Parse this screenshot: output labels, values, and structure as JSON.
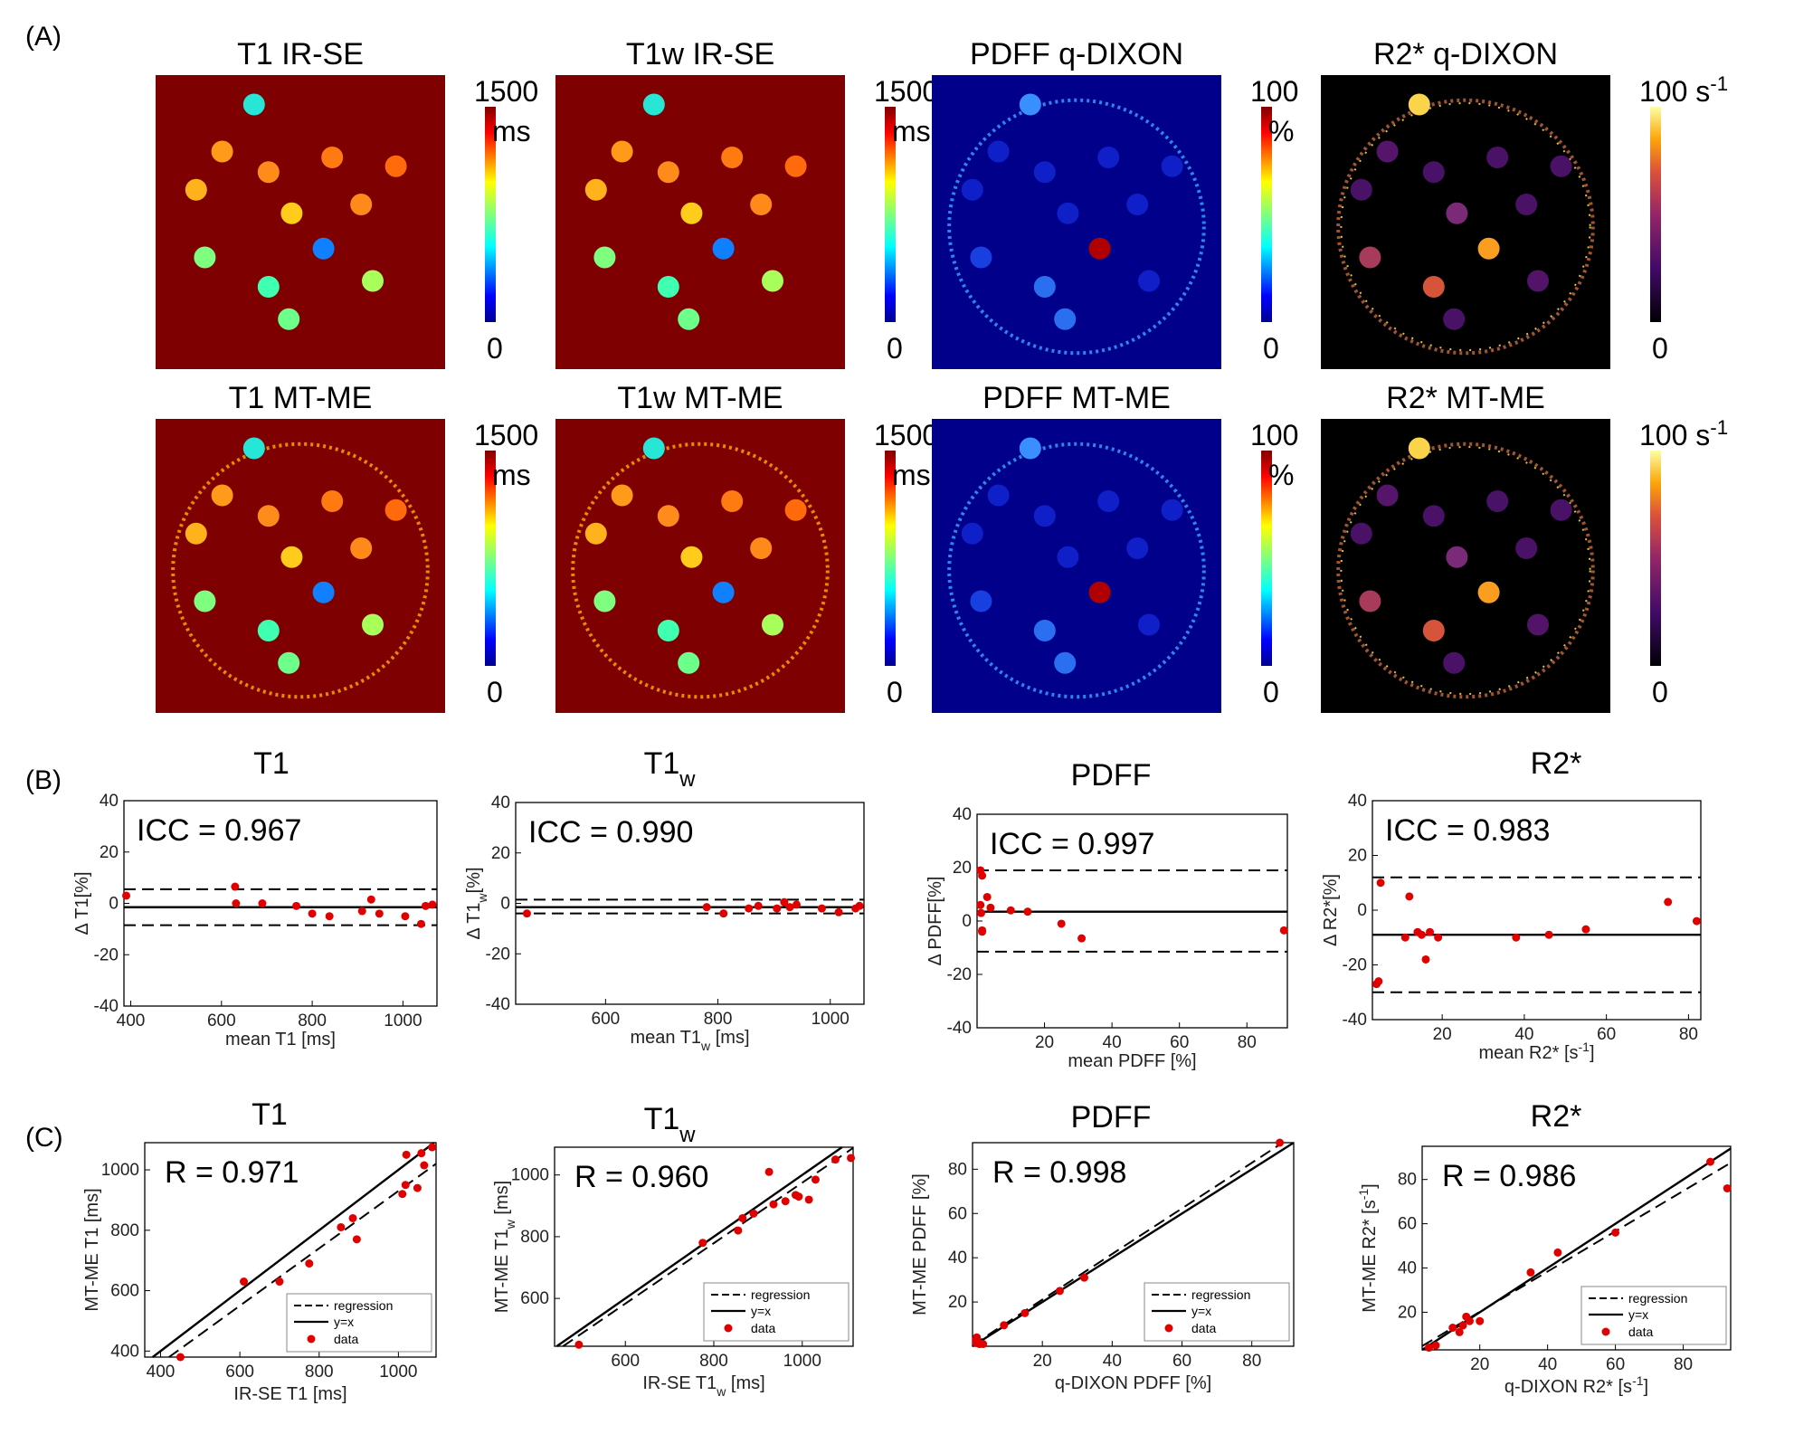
{
  "panel_labels": {
    "a": "(A)",
    "b": "(B)",
    "c": "(C)"
  },
  "maps": [
    {
      "title": "T1 IR-SE",
      "cb_max": "1500",
      "cb_unit": "ms",
      "cb_min": "0",
      "cmap": "jet",
      "bg": "#7f0000",
      "ring": false,
      "row": 0,
      "col": 0
    },
    {
      "title": "T1w IR-SE",
      "cb_max": "1500",
      "cb_unit": "ms",
      "cb_min": "0",
      "cmap": "jet",
      "bg": "#7f0000",
      "ring": false,
      "row": 0,
      "col": 1
    },
    {
      "title": "PDFF q-DIXON",
      "cb_max": "100",
      "cb_unit": "%",
      "cb_min": "0",
      "cmap": "jet",
      "bg": "#00008b",
      "ring": true,
      "row": 0,
      "col": 2
    },
    {
      "title": "R2* q-DIXON",
      "cb_max": "100 s",
      "cb_sup": "-1",
      "cb_unit": "",
      "cb_min": "0",
      "cmap": "inferno",
      "bg": "#000000",
      "ring": true,
      "row": 0,
      "col": 3
    },
    {
      "title": "T1 MT-ME",
      "cb_max": "1500",
      "cb_unit": "ms",
      "cb_min": "0",
      "cmap": "jet",
      "bg": "#7f0000",
      "ring": true,
      "row": 1,
      "col": 0
    },
    {
      "title": "T1w MT-ME",
      "cb_max": "1500",
      "cb_unit": "ms",
      "cb_min": "0",
      "cmap": "jet",
      "bg": "#7f0000",
      "ring": true,
      "row": 1,
      "col": 1
    },
    {
      "title": "PDFF MT-ME",
      "cb_max": "100",
      "cb_unit": "%",
      "cb_min": "0",
      "cmap": "jet",
      "bg": "#00008b",
      "ring": true,
      "row": 1,
      "col": 2
    },
    {
      "title": "R2* MT-ME",
      "cb_max": "100 s",
      "cb_sup": "-1",
      "cb_unit": "",
      "cb_min": "0",
      "cmap": "inferno",
      "bg": "#000000",
      "ring": true,
      "row": 1,
      "col": 3
    }
  ],
  "legend": {
    "regression": "regression",
    "identity": "y=x",
    "data": "data"
  },
  "chart_data": [
    {
      "type": "scatter",
      "panel": "B",
      "title": "T1",
      "title_sub": "",
      "annotation": "ICC = 0.967",
      "xlabel": "mean T1 [ms]",
      "xlabel_sub": "",
      "xlabel_sup": "",
      "xlabel_tail": "",
      "ylabel": "Δ T1[%]",
      "ylabel_sub": "",
      "ylabel_tail": "",
      "xlim": [
        385,
        1075
      ],
      "ylim": [
        -40,
        40
      ],
      "xticks": [
        400,
        600,
        800,
        1000
      ],
      "yticks": [
        -40,
        -20,
        0,
        20,
        40
      ],
      "mean_line": -1.5,
      "loa": [
        5.5,
        -8.5
      ],
      "points": [
        [
          390,
          3
        ],
        [
          630,
          6.5
        ],
        [
          632,
          0
        ],
        [
          690,
          0
        ],
        [
          765,
          -1
        ],
        [
          800,
          -4
        ],
        [
          838,
          -5
        ],
        [
          910,
          -3
        ],
        [
          930,
          1.5
        ],
        [
          948,
          -4
        ],
        [
          1005,
          -5
        ],
        [
          1040,
          -8
        ],
        [
          1050,
          -1
        ],
        [
          1065,
          -0.5
        ]
      ]
    },
    {
      "type": "scatter",
      "panel": "B",
      "title": "T1",
      "title_sub": "w",
      "annotation": "ICC = 0.990",
      "xlabel": "mean T1",
      "xlabel_sub": "w",
      "xlabel_sup": "",
      "xlabel_tail": " [ms]",
      "ylabel": "Δ T1",
      "ylabel_sub": "w",
      "ylabel_tail": "[%]",
      "xlim": [
        440,
        1060
      ],
      "ylim": [
        -40,
        40
      ],
      "xticks": [
        600,
        800,
        1000
      ],
      "yticks": [
        -40,
        -20,
        0,
        20,
        40
      ],
      "mean_line": -1.5,
      "loa": [
        1.5,
        -4
      ],
      "points": [
        [
          460,
          -4
        ],
        [
          780,
          -1.5
        ],
        [
          810,
          -4
        ],
        [
          855,
          -2
        ],
        [
          872,
          -1
        ],
        [
          905,
          -2
        ],
        [
          918,
          0.5
        ],
        [
          928,
          -1.5
        ],
        [
          940,
          -0.5
        ],
        [
          985,
          -2
        ],
        [
          1015,
          -3.5
        ],
        [
          1045,
          -2
        ],
        [
          1052,
          -1
        ]
      ]
    },
    {
      "type": "scatter",
      "panel": "B",
      "title": "PDFF",
      "title_sub": "",
      "annotation": "ICC = 0.997",
      "xlabel": "mean PDFF [%]",
      "xlabel_sub": "",
      "xlabel_sup": "",
      "xlabel_tail": "",
      "ylabel": "Δ PDFF[%]",
      "ylabel_sub": "",
      "ylabel_tail": "",
      "xlim": [
        0,
        92
      ],
      "ylim": [
        -40,
        40
      ],
      "xticks": [
        20,
        40,
        60,
        80
      ],
      "yticks": [
        -40,
        -20,
        0,
        20,
        40
      ],
      "mean_line": 3.5,
      "loa": [
        19,
        -11.5
      ],
      "points": [
        [
          1,
          19
        ],
        [
          1,
          6
        ],
        [
          1.5,
          17
        ],
        [
          1.2,
          3
        ],
        [
          1.5,
          -4
        ],
        [
          1.5,
          -3.5
        ],
        [
          3,
          9
        ],
        [
          4,
          5
        ],
        [
          10,
          4
        ],
        [
          15,
          3.5
        ],
        [
          25,
          -1
        ],
        [
          31,
          -6.5
        ],
        [
          91,
          -3.5
        ]
      ]
    },
    {
      "type": "scatter",
      "panel": "B",
      "title": "R2*",
      "title_sub": "",
      "annotation": "ICC = 0.983",
      "xlabel": "mean R2* [s",
      "xlabel_sub": "",
      "xlabel_sup": "-1",
      "xlabel_tail": "]",
      "ylabel": "Δ R2*[%]",
      "ylabel_sub": "",
      "ylabel_tail": "",
      "xlim": [
        3,
        83
      ],
      "ylim": [
        -40,
        40
      ],
      "xticks": [
        20,
        40,
        60,
        80
      ],
      "yticks": [
        -40,
        -20,
        0,
        20,
        40
      ],
      "mean_line": -9,
      "loa": [
        12,
        -30
      ],
      "points": [
        [
          4,
          -27
        ],
        [
          4.5,
          -26
        ],
        [
          5,
          10
        ],
        [
          11,
          -10
        ],
        [
          12,
          5
        ],
        [
          14,
          -8
        ],
        [
          15,
          -9
        ],
        [
          16,
          -18
        ],
        [
          17,
          -8
        ],
        [
          19,
          -10
        ],
        [
          38,
          -10
        ],
        [
          46,
          -9
        ],
        [
          55,
          -7
        ],
        [
          75,
          3
        ],
        [
          82,
          -4
        ]
      ]
    },
    {
      "type": "scatter",
      "panel": "C",
      "title": "T1",
      "title_sub": "",
      "annotation": "R = 0.971",
      "xlabel": "IR-SE T1 [ms]",
      "xlabel_sub": "",
      "xlabel_sup": "",
      "xlabel_tail": "",
      "ylabel": "MT-ME T1 [ms]",
      "ylabel_sub": "",
      "ylabel_sup": "",
      "ylabel_tail": "",
      "xlim": [
        360,
        1095
      ],
      "ylim": [
        380,
        1090
      ],
      "xticks": [
        400,
        600,
        800,
        1000
      ],
      "yticks": [
        400,
        600,
        800,
        1000
      ],
      "regression": [
        0.95,
        -20
      ],
      "points": [
        [
          450,
          380
        ],
        [
          610,
          630
        ],
        [
          700,
          630
        ],
        [
          775,
          690
        ],
        [
          855,
          810
        ],
        [
          885,
          840
        ],
        [
          895,
          770
        ],
        [
          1010,
          920
        ],
        [
          1018,
          950
        ],
        [
          1020,
          1050
        ],
        [
          1048,
          940
        ],
        [
          1058,
          1055
        ],
        [
          1065,
          1015
        ],
        [
          1085,
          1075
        ]
      ]
    },
    {
      "type": "scatter",
      "panel": "C",
      "title": "T1",
      "title_sub": "w",
      "annotation": "R = 0.960",
      "xlabel": "IR-SE T1",
      "xlabel_sub": "w",
      "xlabel_sup": "",
      "xlabel_tail": " [ms]",
      "ylabel": "MT-ME T1",
      "ylabel_sub": "w",
      "ylabel_sup": "",
      "ylabel_tail": " [ms]",
      "xlim": [
        440,
        1115
      ],
      "ylim": [
        445,
        1090
      ],
      "xticks": [
        600,
        800,
        1000
      ],
      "yticks": [
        600,
        800,
        1000
      ],
      "regression": [
        0.98,
        -5
      ],
      "points": [
        [
          495,
          450
        ],
        [
          775,
          780
        ],
        [
          855,
          820
        ],
        [
          865,
          860
        ],
        [
          890,
          875
        ],
        [
          925,
          1010
        ],
        [
          935,
          905
        ],
        [
          962,
          915
        ],
        [
          985,
          935
        ],
        [
          992,
          930
        ],
        [
          1015,
          920
        ],
        [
          1030,
          985
        ],
        [
          1075,
          1050
        ],
        [
          1110,
          1055
        ]
      ]
    },
    {
      "type": "scatter",
      "panel": "C",
      "title": "PDFF",
      "title_sub": "",
      "annotation": "R = 0.998",
      "xlabel": "q-DIXON PDFF [%]",
      "xlabel_sub": "",
      "xlabel_sup": "",
      "xlabel_tail": "",
      "ylabel": "MT-ME PDFF [%]",
      "ylabel_sub": "",
      "ylabel_sup": "",
      "ylabel_tail": "",
      "xlim": [
        0,
        92
      ],
      "ylim": [
        0,
        92
      ],
      "xticks": [
        20,
        40,
        60,
        80
      ],
      "yticks": [
        20,
        40,
        60,
        80
      ],
      "regression": [
        1.03,
        0.5
      ],
      "points": [
        [
          1,
          1.5
        ],
        [
          1,
          3
        ],
        [
          1.5,
          2
        ],
        [
          2,
          1
        ],
        [
          1.2,
          4
        ],
        [
          3,
          1
        ],
        [
          9,
          9.5
        ],
        [
          15,
          15
        ],
        [
          25,
          25
        ],
        [
          32,
          31
        ],
        [
          88,
          92
        ]
      ]
    },
    {
      "type": "scatter",
      "panel": "C",
      "title": "R2*",
      "title_sub": "",
      "annotation": "R = 0.986",
      "xlabel": "q-DIXON R2* [s",
      "xlabel_sub": "",
      "xlabel_sup": "-1",
      "xlabel_tail": "]",
      "ylabel": "MT-ME R2* [s",
      "ylabel_sub": "",
      "ylabel_sup": "-1",
      "ylabel_tail": "]",
      "xlim": [
        3,
        94
      ],
      "ylim": [
        3,
        95
      ],
      "xticks": [
        20,
        40,
        60,
        80
      ],
      "yticks": [
        20,
        40,
        60,
        80
      ],
      "regression": [
        0.91,
        2
      ],
      "points": [
        [
          5,
          4
        ],
        [
          7,
          5
        ],
        [
          12,
          13
        ],
        [
          14,
          11
        ],
        [
          15,
          14
        ],
        [
          16,
          18
        ],
        [
          17,
          16
        ],
        [
          20,
          16
        ],
        [
          35,
          38
        ],
        [
          43,
          47
        ],
        [
          60,
          56
        ],
        [
          88,
          88
        ],
        [
          93,
          76
        ]
      ]
    }
  ]
}
